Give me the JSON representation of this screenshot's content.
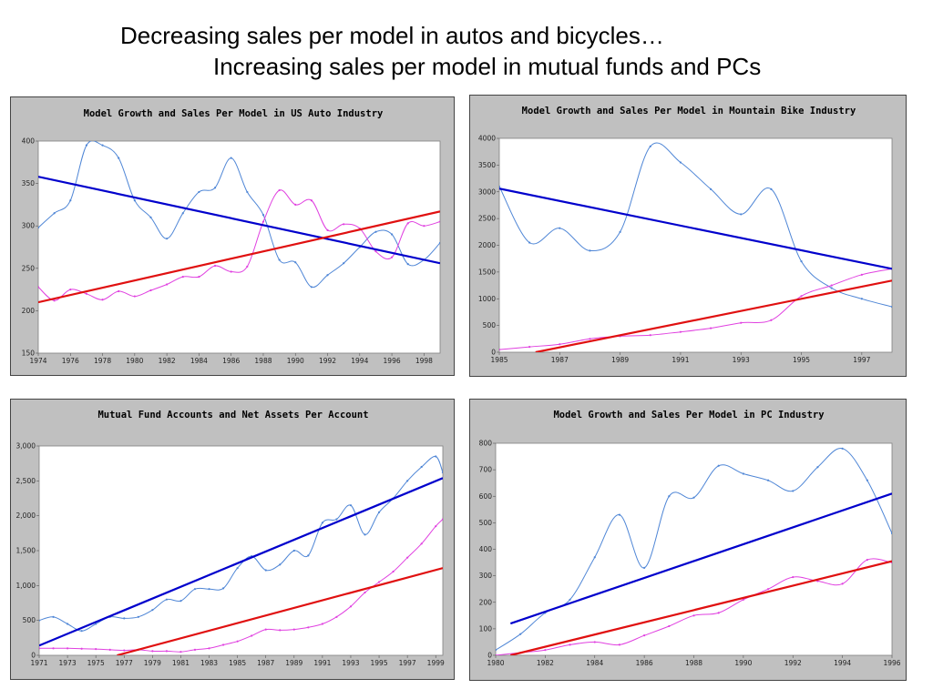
{
  "slide": {
    "title_line1": "Decreasing sales per model in autos and bicycles…",
    "title_line2": "Increasing sales per model in mutual funds and PCs"
  },
  "colors": {
    "series_a": "#4f86d6",
    "series_b": "#e040e0",
    "trend_a": "#0000cc",
    "trend_b": "#e01010"
  },
  "chart_data": [
    {
      "type": "line",
      "title": "Model Growth and Sales Per Model in US Auto Industry",
      "xlim": [
        1974,
        1999
      ],
      "ylim": [
        150,
        400
      ],
      "xticks": [
        "1974",
        "1976",
        "1978",
        "1980",
        "1982",
        "1984",
        "1986",
        "1988",
        "1990",
        "1992",
        "1994",
        "1996",
        "1998"
      ],
      "yticks": [
        "150",
        "200",
        "250",
        "300",
        "350",
        "400"
      ],
      "series": [
        {
          "x": [
            1974,
            1975,
            1976,
            1977,
            1978,
            1979,
            1980,
            1981,
            1982,
            1983,
            1984,
            1985,
            1986,
            1987,
            1988,
            1989,
            1990,
            1991,
            1992,
            1993,
            1994,
            1995,
            1996,
            1997,
            1998,
            1999
          ],
          "values": [
            298,
            315,
            330,
            395,
            395,
            380,
            330,
            310,
            285,
            315,
            340,
            345,
            380,
            340,
            313,
            260,
            257,
            228,
            242,
            256,
            275,
            293,
            290,
            255,
            260,
            280
          ]
        },
        {
          "x": [
            1974,
            1975,
            1976,
            1977,
            1978,
            1979,
            1980,
            1981,
            1982,
            1983,
            1984,
            1985,
            1986,
            1987,
            1988,
            1989,
            1990,
            1991,
            1992,
            1993,
            1994,
            1995,
            1996,
            1997,
            1998,
            1999
          ],
          "values": [
            228,
            212,
            225,
            220,
            213,
            223,
            217,
            224,
            231,
            240,
            240,
            253,
            246,
            252,
            305,
            342,
            325,
            330,
            295,
            302,
            297,
            270,
            263,
            303,
            300,
            305
          ]
        }
      ],
      "trends": [
        {
          "x": [
            1974,
            1999
          ],
          "values": [
            358,
            256
          ]
        },
        {
          "x": [
            1974,
            1999
          ],
          "values": [
            210,
            317
          ]
        }
      ]
    },
    {
      "type": "line",
      "title": "Model Growth and Sales Per Model in Mountain Bike Industry",
      "xlim": [
        1985,
        1998
      ],
      "ylim": [
        0,
        4000
      ],
      "xticks": [
        "1985",
        "1987",
        "1989",
        "1991",
        "1993",
        "1995",
        "1997"
      ],
      "yticks": [
        "0",
        "500",
        "1000",
        "1500",
        "2000",
        "2500",
        "3000",
        "3500",
        "4000"
      ],
      "series": [
        {
          "x": [
            1985,
            1986,
            1987,
            1988,
            1989,
            1990,
            1991,
            1992,
            1993,
            1994,
            1995,
            1996,
            1997,
            1998
          ],
          "values": [
            3100,
            2050,
            2320,
            1900,
            2250,
            3850,
            3550,
            3050,
            2580,
            3050,
            1700,
            1200,
            1000,
            850
          ]
        },
        {
          "x": [
            1985,
            1986,
            1987,
            1988,
            1989,
            1990,
            1991,
            1992,
            1993,
            1994,
            1995,
            1996,
            1997,
            1998
          ],
          "values": [
            50,
            100,
            150,
            250,
            300,
            320,
            380,
            450,
            550,
            600,
            1050,
            1250,
            1450,
            1560
          ]
        }
      ],
      "trends": [
        {
          "x": [
            1985,
            1998
          ],
          "values": [
            3060,
            1560
          ]
        },
        {
          "x": [
            1986.2,
            1998
          ],
          "values": [
            0,
            1340
          ]
        }
      ]
    },
    {
      "type": "line",
      "title": "Mutual Fund Accounts and Net Assets Per Account",
      "xlim": [
        1971,
        1999.5
      ],
      "ylim": [
        0,
        3000
      ],
      "xticks": [
        "1971",
        "1973",
        "1975",
        "1977",
        "1979",
        "1981",
        "1983",
        "1985",
        "1987",
        "1989",
        "1991",
        "1993",
        "1995",
        "1997",
        "1999"
      ],
      "yticks": [
        "0",
        "500",
        "1,000",
        "1,500",
        "2,000",
        "2,500",
        "3,000"
      ],
      "series": [
        {
          "x": [
            1971,
            1972,
            1973,
            1974,
            1975,
            1976,
            1977,
            1978,
            1979,
            1980,
            1981,
            1982,
            1983,
            1984,
            1985,
            1986,
            1987,
            1988,
            1989,
            1990,
            1991,
            1992,
            1993,
            1994,
            1995,
            1996,
            1997,
            1998,
            1999,
            1999.5
          ],
          "values": [
            500,
            550,
            450,
            350,
            450,
            550,
            530,
            550,
            650,
            800,
            780,
            950,
            950,
            960,
            1250,
            1420,
            1220,
            1300,
            1500,
            1430,
            1900,
            1950,
            2150,
            1730,
            2050,
            2250,
            2500,
            2700,
            2850,
            2620
          ]
        },
        {
          "x": [
            1971,
            1972,
            1973,
            1974,
            1975,
            1976,
            1977,
            1978,
            1979,
            1980,
            1981,
            1982,
            1983,
            1984,
            1985,
            1986,
            1987,
            1988,
            1989,
            1990,
            1991,
            1992,
            1993,
            1994,
            1995,
            1996,
            1997,
            1998,
            1999,
            1999.5
          ],
          "values": [
            100,
            100,
            100,
            95,
            90,
            80,
            70,
            80,
            60,
            60,
            50,
            80,
            100,
            150,
            200,
            280,
            370,
            360,
            370,
            400,
            450,
            550,
            700,
            900,
            1050,
            1200,
            1400,
            1600,
            1850,
            1950
          ]
        }
      ],
      "trends": [
        {
          "x": [
            1971,
            1999.5
          ],
          "values": [
            140,
            2540
          ]
        },
        {
          "x": [
            1976.5,
            1999.5
          ],
          "values": [
            0,
            1250
          ]
        }
      ]
    },
    {
      "type": "line",
      "title": "Model Growth and Sales Per Model in PC Industry",
      "xlim": [
        1980,
        1996
      ],
      "ylim": [
        0,
        800
      ],
      "xticks": [
        "1980",
        "1982",
        "1984",
        "1986",
        "1988",
        "1990",
        "1992",
        "1994",
        "1996"
      ],
      "yticks": [
        "0",
        "100",
        "200",
        "300",
        "400",
        "500",
        "600",
        "700",
        "800"
      ],
      "series": [
        {
          "x": [
            1980,
            1981,
            1982,
            1983,
            1984,
            1985,
            1986,
            1987,
            1988,
            1989,
            1990,
            1991,
            1992,
            1993,
            1994,
            1995,
            1996
          ],
          "values": [
            20,
            80,
            160,
            210,
            370,
            530,
            330,
            600,
            595,
            715,
            685,
            660,
            620,
            710,
            780,
            660,
            460
          ]
        },
        {
          "x": [
            1980,
            1981,
            1982,
            1983,
            1984,
            1985,
            1986,
            1987,
            1988,
            1989,
            1990,
            1991,
            1992,
            1993,
            1994,
            1995,
            1996
          ],
          "values": [
            0,
            10,
            20,
            40,
            50,
            40,
            75,
            110,
            150,
            160,
            210,
            250,
            295,
            280,
            270,
            360,
            350
          ]
        }
      ],
      "trends": [
        {
          "x": [
            1980.6,
            1996
          ],
          "values": [
            120,
            610
          ]
        },
        {
          "x": [
            1980.6,
            1996
          ],
          "values": [
            0,
            355
          ]
        }
      ]
    }
  ]
}
